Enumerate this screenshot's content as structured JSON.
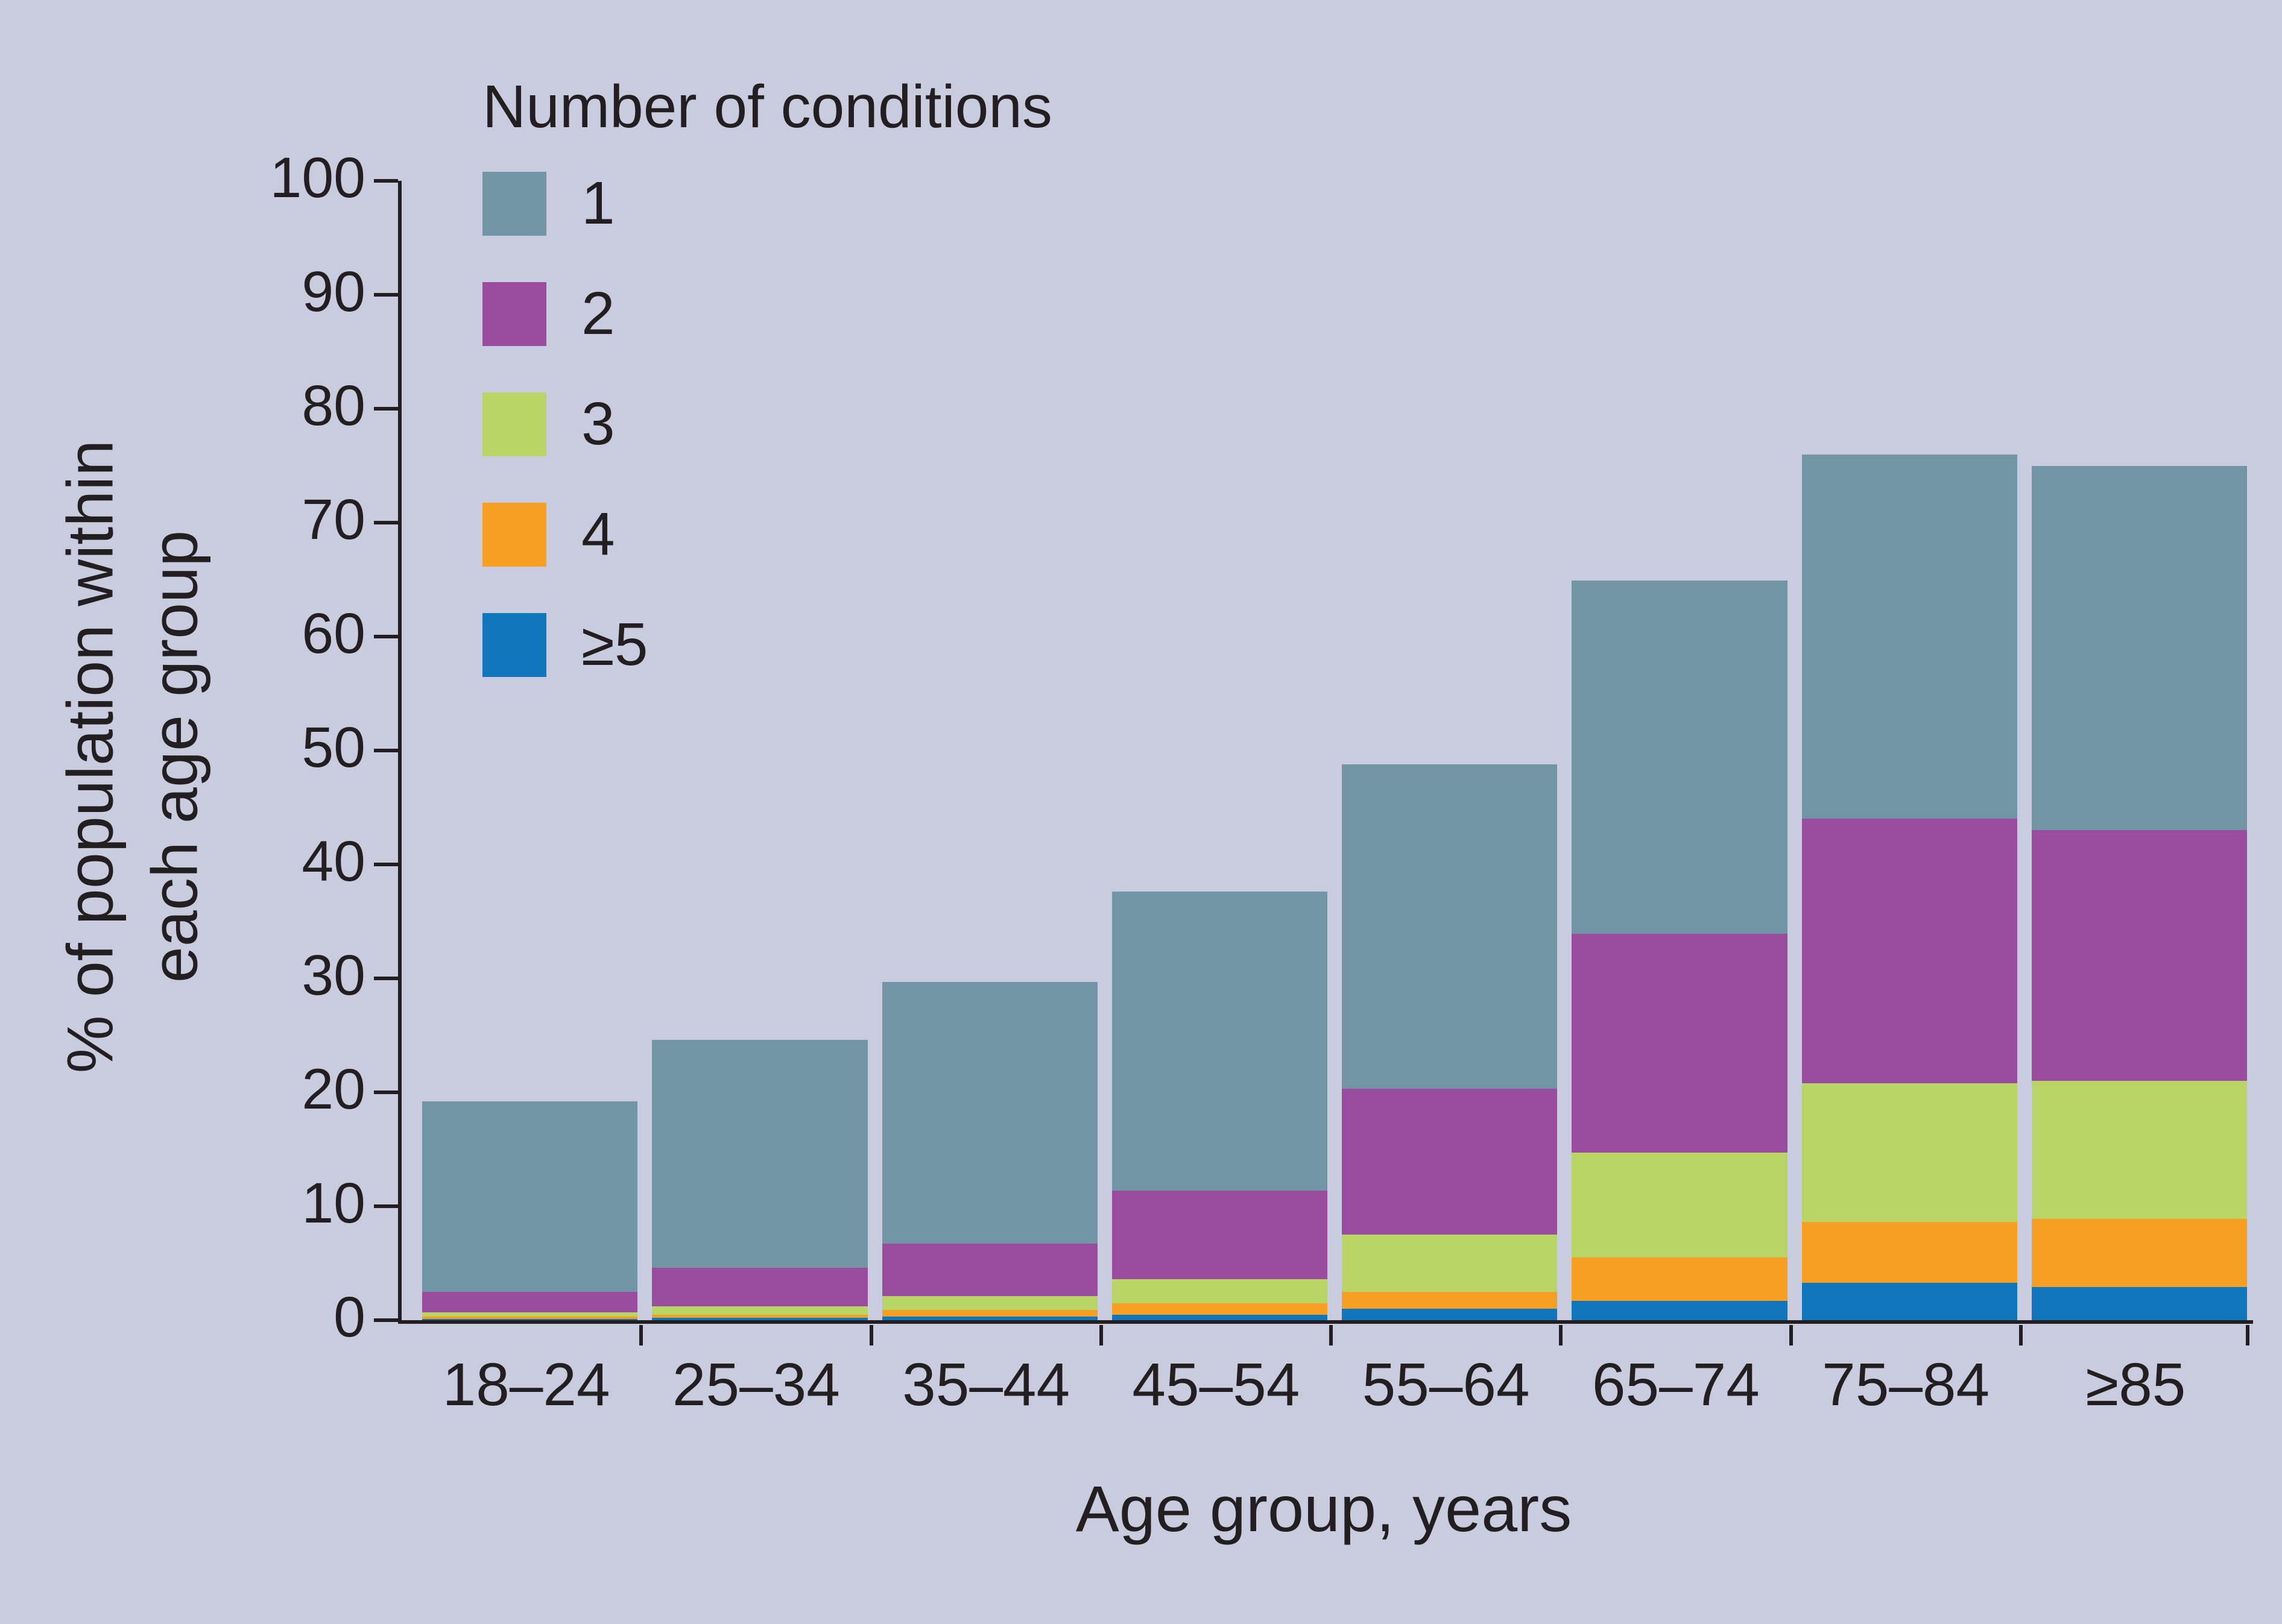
{
  "figure": {
    "background_color": "#c9cbde",
    "text_color": "#231f20"
  },
  "chart_data": {
    "type": "bar",
    "stacked": true,
    "legend_title": "Number of conditions",
    "xlabel": "Age group, years",
    "ylabel": "% of population within\neach age group",
    "categories": [
      "18–24",
      "25–34",
      "35–44",
      "45–54",
      "55–64",
      "65–74",
      "75–84",
      "≥85"
    ],
    "series": [
      {
        "name": "1",
        "color": "#7295a5",
        "values": [
          16.7,
          20.0,
          23.0,
          26.2,
          28.5,
          31.0,
          32.0,
          32.0
        ]
      },
      {
        "name": "2",
        "color": "#9a4d9e",
        "values": [
          1.8,
          3.4,
          4.6,
          7.8,
          12.8,
          19.2,
          23.2,
          22.0
        ]
      },
      {
        "name": "3",
        "color": "#b9d566",
        "values": [
          0.4,
          0.7,
          1.2,
          2.1,
          5.0,
          9.2,
          12.2,
          12.1
        ]
      },
      {
        "name": "4",
        "color": "#f69f22",
        "values": [
          0.2,
          0.3,
          0.6,
          1.0,
          1.5,
          3.8,
          5.3,
          6.0
        ]
      },
      {
        "name": "≥5",
        "color": "#0f76bc",
        "values": [
          0.1,
          0.2,
          0.3,
          0.5,
          1.0,
          1.7,
          3.3,
          2.9
        ]
      }
    ],
    "totals": [
      19.2,
      24.6,
      29.7,
      37.6,
      48.8,
      64.9,
      76.0,
      75.0
    ],
    "ylim": [
      0,
      100
    ],
    "yticks": [
      0,
      10,
      20,
      30,
      40,
      50,
      60,
      70,
      80,
      90,
      100
    ],
    "grid": false,
    "legend_position": "upper-left-inside"
  }
}
